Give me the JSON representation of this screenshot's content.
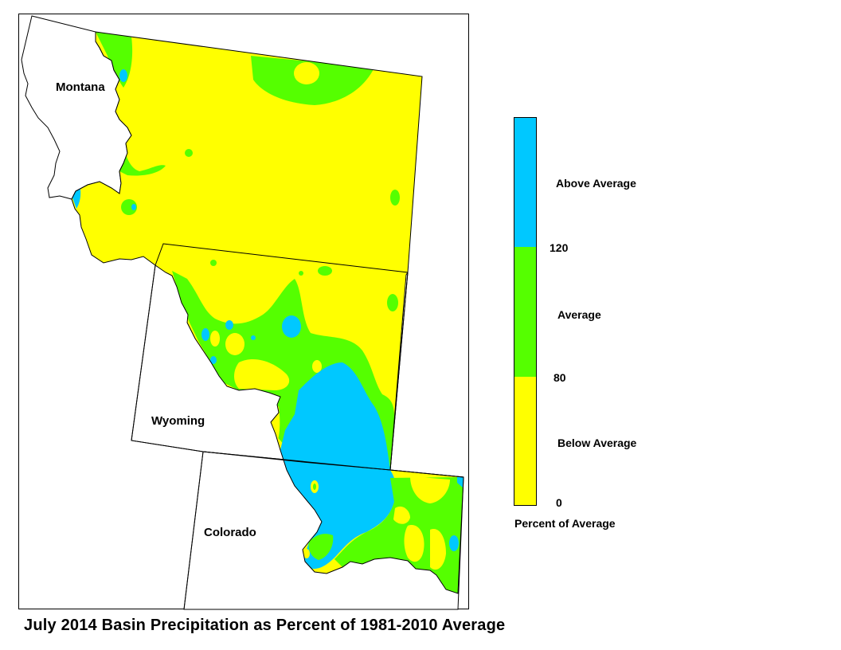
{
  "map": {
    "title": "July 2014 Basin Precipitation as Percent of 1981-2010 Average",
    "state_labels": {
      "montana": "Montana",
      "wyoming": "Wyoming",
      "colorado": "Colorado"
    }
  },
  "legend": {
    "categories": [
      {
        "label": "Above Average",
        "color": "#00c8ff"
      },
      {
        "label": "Average",
        "color": "#55ff00"
      },
      {
        "label": "Below Average",
        "color": "#ffff00"
      }
    ],
    "breaks": {
      "high": "120",
      "mid": "80",
      "low": "0"
    },
    "caption": "Percent of Average"
  }
}
